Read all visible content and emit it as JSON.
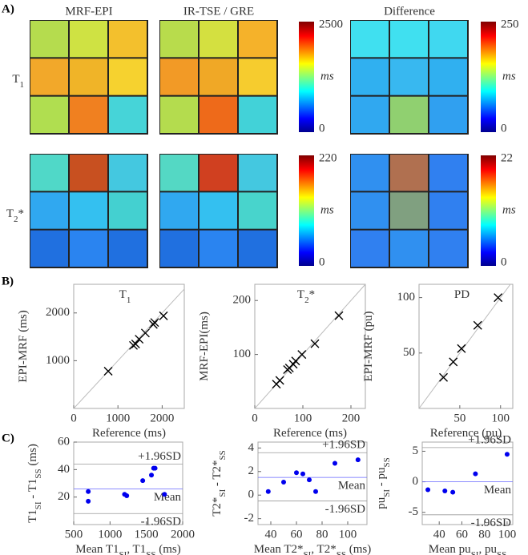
{
  "figure": {
    "panel_labels": [
      "A)",
      "B)",
      "C)"
    ],
    "map_titles": [
      "MRF-EPI",
      "IR-TSE / GRE",
      "Difference"
    ],
    "row_labels": [
      [
        "T",
        "1"
      ],
      [
        "T",
        "2",
        "*"
      ]
    ],
    "colorbars": [
      {
        "range": [
          0,
          2500
        ],
        "unit": "ms"
      },
      {
        "range": [
          0,
          250
        ],
        "unit": "ms"
      },
      {
        "range": [
          0,
          220
        ],
        "unit": "ms"
      },
      {
        "range": [
          0,
          22
        ],
        "unit": "ms"
      }
    ]
  },
  "chart_data": [
    {
      "type": "scatter",
      "title": [
        "T",
        "1"
      ],
      "xlabel": [
        "Reference (ms)"
      ],
      "ylabel": [
        "EPI-MRF (ms)"
      ],
      "marker": "x",
      "color": "#000000",
      "identity_line": true,
      "x": [
        780,
        1350,
        1400,
        1480,
        1620,
        1800,
        1830,
        2030
      ],
      "y": [
        780,
        1320,
        1350,
        1450,
        1580,
        1760,
        1800,
        1940
      ],
      "xlim": [
        0,
        2500
      ],
      "ylim": [
        0,
        2600
      ],
      "xticks": [
        0,
        1000,
        2000
      ],
      "yticks": [
        1000,
        2000
      ]
    },
    {
      "type": "scatter",
      "title": [
        "T",
        "2",
        "*"
      ],
      "xlabel": [
        "Reference (ms)"
      ],
      "ylabel": [
        "MRF-EPI(ms)"
      ],
      "marker": "x",
      "color": "#000000",
      "identity_line": true,
      "x": [
        45,
        52,
        68,
        72,
        80,
        85,
        98,
        125,
        175
      ],
      "y": [
        45,
        52,
        72,
        75,
        82,
        88,
        100,
        120,
        172
      ],
      "xlim": [
        0,
        230
      ],
      "ylim": [
        0,
        230
      ],
      "xticks": [
        0,
        100,
        200
      ],
      "yticks": [
        100,
        200
      ]
    },
    {
      "type": "scatter",
      "title": [
        "PD"
      ],
      "xlabel": [
        "Reference (pu)"
      ],
      "ylabel": [
        "EPI-MRF (pu)"
      ],
      "marker": "x",
      "color": "#000000",
      "identity_line": true,
      "x": [
        30,
        42,
        52,
        72,
        97
      ],
      "y": [
        28,
        42,
        54,
        75,
        100
      ],
      "xlim": [
        0,
        115
      ],
      "ylim": [
        0,
        112
      ],
      "xticks": [
        50,
        100
      ],
      "yticks": [
        50,
        100
      ]
    },
    {
      "type": "scatter",
      "xlabel": [
        "Mean T1",
        "SI",
        ", T1",
        "SS",
        " (ms)"
      ],
      "ylabel": [
        "T1",
        "SI",
        " - T1",
        "SS",
        " (ms)"
      ],
      "marker": "dot",
      "color": "#0000ee",
      "x": [
        700,
        700,
        1200,
        1230,
        1450,
        1570,
        1600,
        1620,
        1750
      ],
      "y": [
        17,
        24,
        22,
        21,
        32,
        36,
        41,
        41,
        22
      ],
      "xlim": [
        500,
        2000
      ],
      "ylim": [
        0,
        60
      ],
      "xticks": [
        500,
        1000,
        1500,
        2000
      ],
      "yticks": [
        20,
        40,
        60
      ],
      "reference_lines": [
        {
          "label": "+1.96SD",
          "value": 44,
          "color": "#999999"
        },
        {
          "label": "Mean",
          "value": 26,
          "color": "#6666ff"
        },
        {
          "label": "-1.96SD",
          "value": 8,
          "color": "#999999"
        }
      ]
    },
    {
      "type": "scatter",
      "xlabel": [
        "Mean T2*",
        "SI",
        ", T2*",
        "SS",
        " (ms)"
      ],
      "ylabel": [
        "T2*",
        "SI",
        " - T2*",
        "SS"
      ],
      "marker": "dot",
      "color": "#0000ee",
      "x": [
        38,
        50,
        60,
        65,
        70,
        75,
        90,
        108
      ],
      "y": [
        0.3,
        1.1,
        1.9,
        1.8,
        1.3,
        0.3,
        2.7,
        3.0
      ],
      "xlim": [
        30,
        115
      ],
      "ylim": [
        -2.5,
        4.5
      ],
      "xticks": [
        40,
        60,
        80,
        100
      ],
      "yticks": [
        -2,
        0,
        2,
        4
      ],
      "reference_lines": [
        {
          "label": "+1.96SD",
          "value": 3.6,
          "color": "#999999"
        },
        {
          "label": "Mean",
          "value": 1.5,
          "color": "#6666ff"
        },
        {
          "label": "-1.96SD",
          "value": -0.5,
          "color": "#999999"
        }
      ]
    },
    {
      "type": "scatter",
      "xlabel": [
        "Mean pu",
        "SI",
        ", pu",
        "SS"
      ],
      "ylabel": [
        "pu",
        "SI",
        " - pu",
        "SS"
      ],
      "marker": "dot",
      "color": "#0000ee",
      "x": [
        30,
        45,
        52,
        72,
        100
      ],
      "y": [
        -1.3,
        -1.5,
        -1.7,
        1.3,
        4.5
      ],
      "xlim": [
        25,
        105
      ],
      "ylim": [
        -7,
        6.5
      ],
      "xticks": [
        40,
        60,
        80,
        100
      ],
      "yticks": [
        -5,
        0,
        5
      ],
      "reference_lines": [
        {
          "label": "+1.96SD",
          "value": 5.6,
          "color": "#999999"
        },
        {
          "label": "Mean",
          "value": 0,
          "color": "#6666ff"
        },
        {
          "label": "-1.96SD",
          "value": -5.4,
          "color": "#999999"
        }
      ]
    }
  ]
}
